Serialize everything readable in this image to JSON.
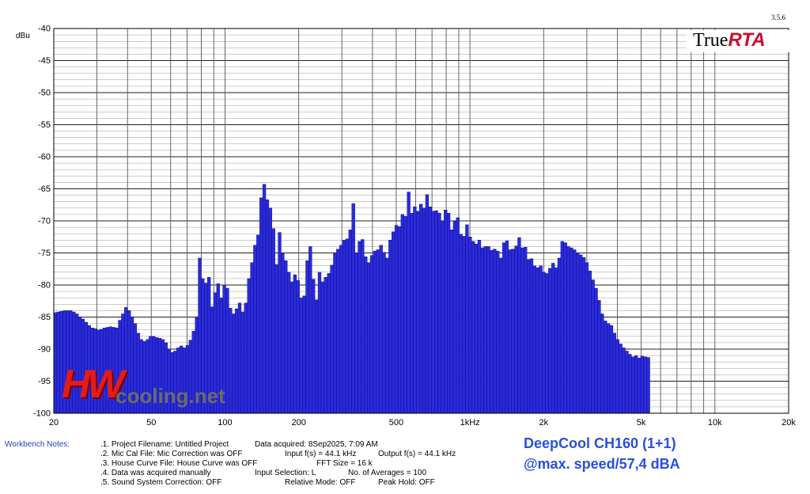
{
  "app": {
    "version": "3.5.6",
    "logo_part1": "True",
    "logo_part2": "RTA"
  },
  "watermark": {
    "part1": "HW",
    "part2": "cooling.net"
  },
  "workbench": {
    "label": "Workbench Notes:",
    "lines": [
      ".1. Project Filename: Untitled Project",
      ".2. Mic Cal File: Mic Correction was OFF",
      ".3. House Curve File: House Curve was OFF",
      ".4. Data was acquired manually",
      ".5. Sound System Correction: OFF"
    ],
    "col2": [
      "Data acquired: 8Sep2025, 7:09 AM",
      "Input f(s) = 44.1 kHz",
      "FFT Size = 16 k",
      "Input Selection: L",
      "Relative Mode: OFF"
    ],
    "col3": [
      "",
      "Output f(s) = 44.1 kHz",
      "",
      "No. of Averages = 100",
      "Peak Hold: OFF"
    ]
  },
  "caption": {
    "line1": "DeepCool CH160 (1+1)",
    "line2": "@max. speed/57,4 dBA"
  },
  "colors": {
    "bar": "#2b2bd8",
    "bar_edge": "#000088",
    "grid": "#000000"
  },
  "chart_data": {
    "type": "bar",
    "x_scale": "log",
    "ylabel": "dBu",
    "xlim": [
      20,
      20000
    ],
    "ylim": [
      -100,
      -40
    ],
    "yticks": [
      -40,
      -45,
      -50,
      -55,
      -60,
      -65,
      -70,
      -75,
      -80,
      -85,
      -90,
      -95,
      -100
    ],
    "xticks": [
      {
        "f": 20,
        "label": "20"
      },
      {
        "f": 50,
        "label": "50"
      },
      {
        "f": 100,
        "label": "100"
      },
      {
        "f": 200,
        "label": "200"
      },
      {
        "f": 500,
        "label": "500"
      },
      {
        "f": 1000,
        "label": "1kHz"
      },
      {
        "f": 2000,
        "label": "2k"
      },
      {
        "f": 5000,
        "label": "5k"
      },
      {
        "f": 10000,
        "label": "10k"
      },
      {
        "f": 20000,
        "label": "20k"
      }
    ],
    "grid": true,
    "bands_per_octave": 24,
    "values": [
      -84.3,
      -84.2,
      -84.1,
      -84.0,
      -84.0,
      -84.0,
      -84.2,
      -84.5,
      -85.0,
      -85.3,
      -85.8,
      -86.3,
      -86.7,
      -86.8,
      -87.0,
      -86.9,
      -86.7,
      -86.6,
      -86.5,
      -86.6,
      -86.7,
      -85.5,
      -84.5,
      -83.5,
      -84.0,
      -85.0,
      -86.0,
      -87.5,
      -88.5,
      -88.8,
      -88.5,
      -88.0,
      -88.0,
      -88.2,
      -88.3,
      -88.5,
      -89.0,
      -90.0,
      -90.5,
      -90.3,
      -89.8,
      -89.5,
      -89.8,
      -89.4,
      -88.6,
      -87.2,
      -85.0,
      -75.8,
      -79.0,
      -79.7,
      -78.8,
      -83.4,
      -81.2,
      -79.8,
      -82.0,
      -80.0,
      -80.5,
      -83.6,
      -84.5,
      -83.7,
      -82.8,
      -84.2,
      -82.8,
      -79.0,
      -76.5,
      -73.8,
      -72.2,
      -66.4,
      -64.3,
      -66.7,
      -68.0,
      -71.2,
      -76.8,
      -71.8,
      -75.0,
      -76.2,
      -78.0,
      -79.5,
      -78.4,
      -79.3,
      -82.0,
      -81.7,
      -76.2,
      -74.0,
      -79.1,
      -82.3,
      -78.0,
      -79.5,
      -78.8,
      -78.2,
      -76.9,
      -75.0,
      -74.4,
      -73.8,
      -73.0,
      -72.8,
      -71.4,
      -67.3,
      -75.0,
      -73.2,
      -72.9,
      -75.6,
      -76.5,
      -75.4,
      -74.7,
      -74.5,
      -73.8,
      -74.9,
      -75.8,
      -73.0,
      -71.7,
      -70.7,
      -70.9,
      -69.0,
      -69.3,
      -65.5,
      -68.8,
      -67.8,
      -68.5,
      -67.4,
      -68.0,
      -65.9,
      -67.8,
      -68.5,
      -68.4,
      -68.8,
      -70.0,
      -68.3,
      -68.8,
      -71.4,
      -70.1,
      -69.5,
      -72.1,
      -72.4,
      -70.6,
      -72.5,
      -73.2,
      -73.6,
      -73.0,
      -74.2,
      -74.0,
      -74.0,
      -74.6,
      -74.4,
      -74.7,
      -75.8,
      -73.4,
      -73.1,
      -74.5,
      -74.4,
      -73.9,
      -72.6,
      -74.2,
      -74.1,
      -76.0,
      -75.9,
      -77.0,
      -77.3,
      -77.0,
      -78.0,
      -78.2,
      -77.4,
      -76.6,
      -77.3,
      -75.8,
      -73.2,
      -73.4,
      -74.0,
      -74.2,
      -74.5,
      -75.0,
      -75.3,
      -75.7,
      -76.5,
      -77.8,
      -79.2,
      -80.5,
      -82.4,
      -84.5,
      -85.6,
      -86.0,
      -86.3,
      -87.5,
      -88.5,
      -89.2,
      -89.8,
      -90.3,
      -90.8,
      -91.2,
      -91.0,
      -91.4,
      -91.1,
      -91.2,
      -91.3
    ]
  }
}
